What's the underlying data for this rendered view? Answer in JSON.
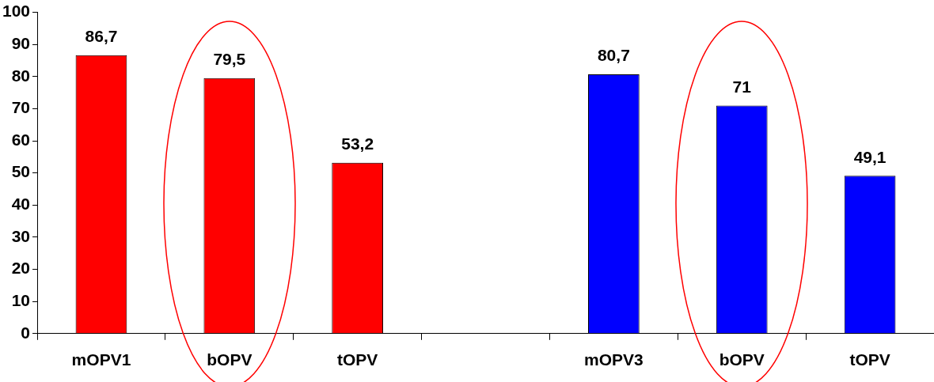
{
  "chart_data": {
    "type": "bar",
    "categories": [
      "mOPV1",
      "bOPV",
      "tOPV",
      null,
      "mOPV3",
      "bOPV",
      "tOPV"
    ],
    "values": [
      86.7,
      79.5,
      53.2,
      null,
      80.7,
      71,
      49.1
    ],
    "colors": [
      "#ff0000",
      "#ff0000",
      "#ff0000",
      null,
      "#0000ff",
      "#0000ff",
      "#0000ff"
    ],
    "value_labels": [
      "86,7",
      "79,5",
      "53,2",
      null,
      "80,7",
      "71",
      "49,1"
    ],
    "ylim": [
      0,
      100
    ],
    "yticks": [
      0,
      10,
      20,
      30,
      40,
      50,
      60,
      70,
      80,
      90,
      100
    ],
    "grid": false,
    "legend": false
  }
}
